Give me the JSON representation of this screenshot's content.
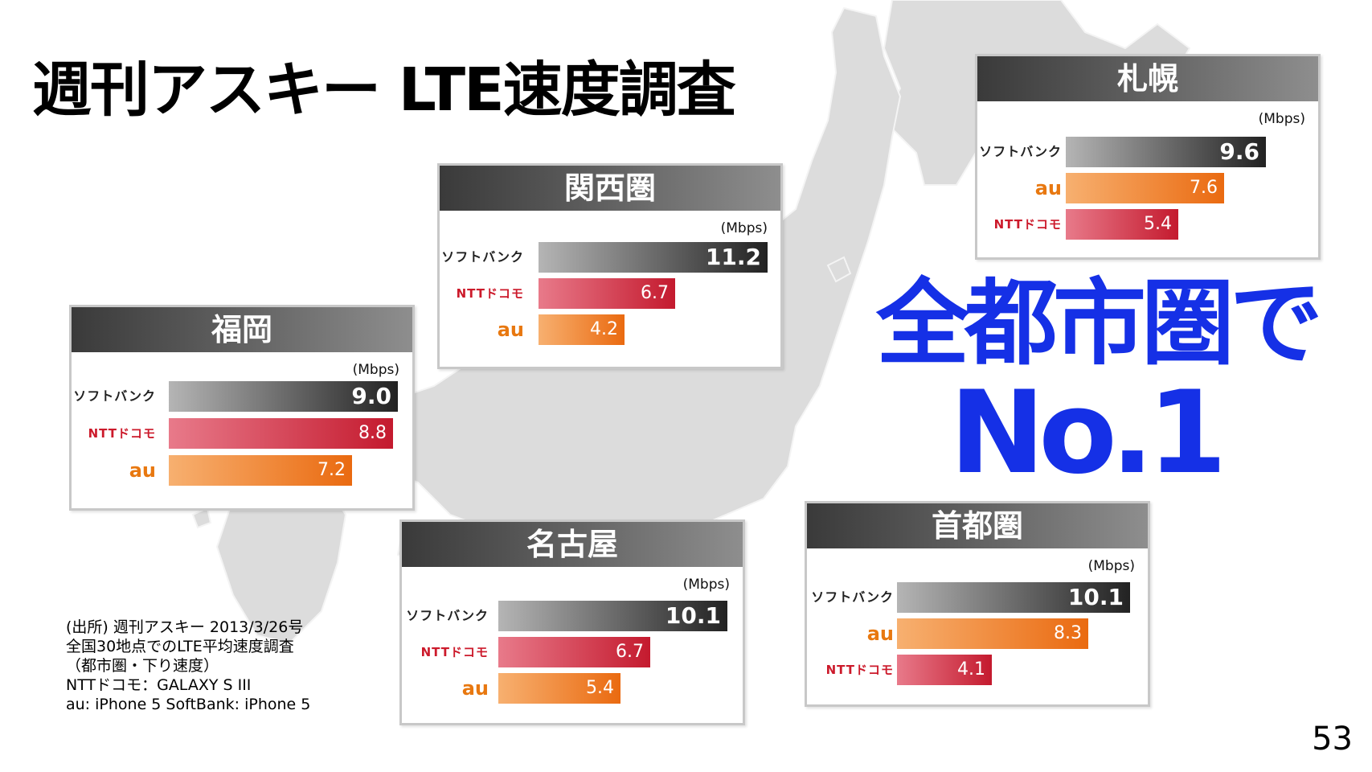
{
  "slide": {
    "title": "週刊アスキー LTE速度調査",
    "claim_line1": "全都市圏で",
    "claim_line2": "No.1",
    "page_number": "53",
    "source_lines": [
      "(出所) 週刊アスキー 2013/3/26号",
      "全国30地点でのLTE平均速度調査",
      "（都市圏・下り速度）",
      "NTTドコモ：GALAXY S III",
      "au: iPhone 5 SoftBank: iPhone 5"
    ]
  },
  "colors": {
    "claim": "#1530e6",
    "softbank": "#222222",
    "docomo": "#c41a2e",
    "au": "#ea6a10",
    "panel_header": "#555555"
  },
  "chart_data": [
    {
      "type": "bar",
      "orientation": "horizontal",
      "title": "札幌",
      "unit": "(Mbps)",
      "xlim": [
        0,
        11.2
      ],
      "bars": [
        {
          "carrier": "ソフトバンク",
          "key": "softbank",
          "value": 9.6,
          "label": "9.6"
        },
        {
          "carrier": "au",
          "key": "au",
          "value": 7.6,
          "label": "7.6"
        },
        {
          "carrier": "NTTドコモ",
          "key": "docomo",
          "value": 5.4,
          "label": "5.4"
        }
      ]
    },
    {
      "type": "bar",
      "orientation": "horizontal",
      "title": "関西圏",
      "unit": "(Mbps)",
      "xlim": [
        0,
        11.2
      ],
      "bars": [
        {
          "carrier": "ソフトバンク",
          "key": "softbank",
          "value": 11.2,
          "label": "11.2"
        },
        {
          "carrier": "NTTドコモ",
          "key": "docomo",
          "value": 6.7,
          "label": "6.7"
        },
        {
          "carrier": "au",
          "key": "au",
          "value": 4.2,
          "label": "4.2"
        }
      ]
    },
    {
      "type": "bar",
      "orientation": "horizontal",
      "title": "福岡",
      "unit": "(Mbps)",
      "xlim": [
        0,
        9.0
      ],
      "bars": [
        {
          "carrier": "ソフトバンク",
          "key": "softbank",
          "value": 9.0,
          "label": "9.0"
        },
        {
          "carrier": "NTTドコモ",
          "key": "docomo",
          "value": 8.8,
          "label": "8.8"
        },
        {
          "carrier": "au",
          "key": "au",
          "value": 7.2,
          "label": "7.2"
        }
      ]
    },
    {
      "type": "bar",
      "orientation": "horizontal",
      "title": "名古屋",
      "unit": "(Mbps)",
      "xlim": [
        0,
        10.1
      ],
      "bars": [
        {
          "carrier": "ソフトバンク",
          "key": "softbank",
          "value": 10.1,
          "label": "10.1"
        },
        {
          "carrier": "NTTドコモ",
          "key": "docomo",
          "value": 6.7,
          "label": "6.7"
        },
        {
          "carrier": "au",
          "key": "au",
          "value": 5.4,
          "label": "5.4"
        }
      ]
    },
    {
      "type": "bar",
      "orientation": "horizontal",
      "title": "首都圏",
      "unit": "(Mbps)",
      "xlim": [
        0,
        10.1
      ],
      "bars": [
        {
          "carrier": "ソフトバンク",
          "key": "softbank",
          "value": 10.1,
          "label": "10.1"
        },
        {
          "carrier": "au",
          "key": "au",
          "value": 8.3,
          "label": "8.3"
        },
        {
          "carrier": "NTTドコモ",
          "key": "docomo",
          "value": 4.1,
          "label": "4.1"
        }
      ]
    }
  ]
}
